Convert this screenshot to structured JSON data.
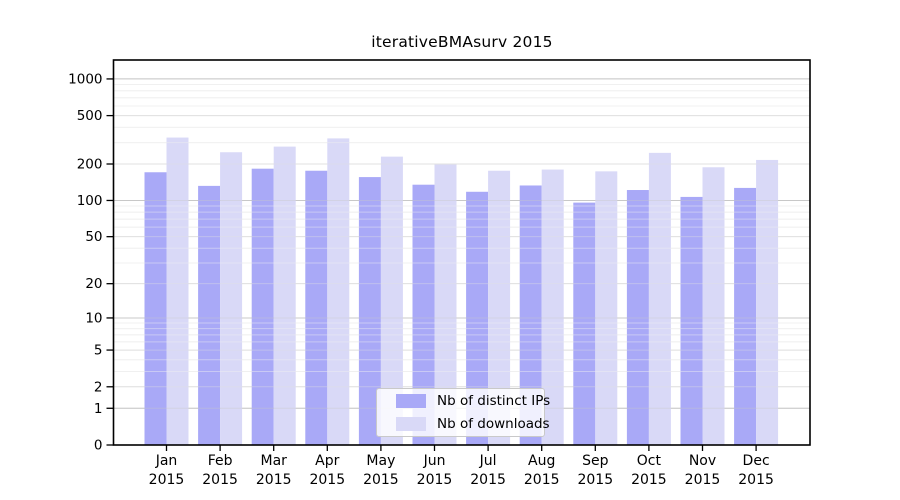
{
  "chart_data": {
    "type": "bar",
    "title": "iterativeBMAsurv 2015",
    "categories": [
      "Jan",
      "Feb",
      "Mar",
      "Apr",
      "May",
      "Jun",
      "Jul",
      "Aug",
      "Sep",
      "Oct",
      "Nov",
      "Dec"
    ],
    "category_year": "2015",
    "series": [
      {
        "name": "Nb of distinct IPs",
        "color": "#a9a9f7",
        "values": [
          171,
          132,
          183,
          176,
          156,
          135,
          118,
          133,
          96,
          122,
          107,
          127
        ]
      },
      {
        "name": "Nb of downloads",
        "color": "#d9d9f7",
        "values": [
          330,
          250,
          278,
          325,
          230,
          198,
          176,
          180,
          174,
          247,
          188,
          216
        ]
      }
    ],
    "yscale": "log1p",
    "yticks": [
      0,
      1,
      2,
      5,
      10,
      20,
      50,
      100,
      200,
      500,
      1000
    ],
    "yticks_minor": [
      3,
      4,
      6,
      7,
      8,
      9,
      30,
      40,
      60,
      70,
      80,
      90,
      300,
      400,
      600,
      700,
      800,
      900
    ],
    "ylim": [
      0,
      1430
    ],
    "xlabel": "",
    "ylabel": "",
    "grid": true,
    "legend_position": "bottom-center",
    "colors": {
      "axis": "#000000",
      "grid_decade": "#c8c8c8",
      "grid_major": "#e0e0e0",
      "grid_minor": "#f0f0f0",
      "background": "#ffffff"
    }
  }
}
